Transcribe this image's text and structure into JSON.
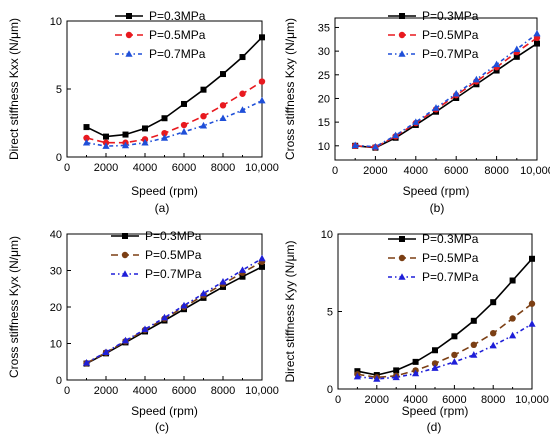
{
  "chart_data": [
    {
      "type": "line",
      "panel_label": "(a)",
      "ylabel": "Direct stiffness Kxx  (N/μm)",
      "xlabel": "Speed (rpm)",
      "xlim": [
        0,
        10000
      ],
      "ylim": [
        0,
        10
      ],
      "xticks": [
        0,
        2000,
        4000,
        6000,
        8000,
        10000
      ],
      "xtick_labels": [
        "0",
        "2000",
        "4000",
        "6000",
        "8000",
        "10,000"
      ],
      "yticks": [
        0,
        5,
        10
      ],
      "ytick_labels": [
        "0",
        "5",
        "10"
      ],
      "x": [
        1000,
        2000,
        3000,
        4000,
        5000,
        6000,
        7000,
        8000,
        9000,
        10000
      ],
      "legend_placement": "top-right",
      "series": [
        {
          "name": "P=0.3MPa",
          "color": "#000000",
          "marker": "square",
          "dash": "solid",
          "values": [
            2.2,
            1.5,
            1.65,
            2.1,
            2.85,
            3.9,
            4.95,
            6.1,
            7.35,
            8.8
          ]
        },
        {
          "name": "P=0.5MPa",
          "color": "#e8191f",
          "marker": "circle",
          "dash": "long-dash",
          "values": [
            1.4,
            1.05,
            1.05,
            1.3,
            1.75,
            2.35,
            3.0,
            3.8,
            4.65,
            5.55
          ]
        },
        {
          "name": "P=0.7MPa",
          "color": "#1f4fd8",
          "marker": "triangle",
          "dash": "dash-dot",
          "values": [
            1.05,
            0.8,
            0.85,
            1.05,
            1.4,
            1.85,
            2.3,
            2.85,
            3.45,
            4.15
          ]
        }
      ]
    },
    {
      "type": "line",
      "panel_label": "(b)",
      "ylabel": "Cross stiffness Kxy  (N/μm)",
      "xlabel": "Speed (rpm)",
      "xlim": [
        0,
        10000
      ],
      "ylim": [
        7,
        37
      ],
      "xticks": [
        0,
        2000,
        4000,
        6000,
        8000,
        10000
      ],
      "xtick_labels": [
        "0",
        "2000",
        "4000",
        "6000",
        "8000",
        "10,000"
      ],
      "yticks": [
        10,
        15,
        20,
        25,
        30,
        35
      ],
      "ytick_labels": [
        "10",
        "15",
        "20",
        "25",
        "30",
        "35"
      ],
      "x": [
        1000,
        2000,
        3000,
        4000,
        5000,
        6000,
        7000,
        8000,
        9000,
        10000
      ],
      "legend_placement": "top-right",
      "series": [
        {
          "name": "P=0.3MPa",
          "color": "#000000",
          "marker": "square",
          "dash": "solid",
          "values": [
            10.0,
            9.6,
            11.7,
            14.4,
            17.2,
            20.1,
            23.0,
            25.9,
            28.8,
            31.6
          ]
        },
        {
          "name": "P=0.5MPa",
          "color": "#e8191f",
          "marker": "circle",
          "dash": "long-dash",
          "values": [
            10.0,
            9.7,
            12.0,
            14.8,
            17.7,
            20.7,
            23.6,
            26.6,
            29.8,
            32.8
          ]
        },
        {
          "name": "P=0.7MPa",
          "color": "#1f4fd8",
          "marker": "triangle",
          "dash": "dash-dot",
          "values": [
            10.1,
            9.8,
            12.2,
            15.0,
            18.0,
            21.0,
            24.0,
            27.2,
            30.4,
            33.7
          ]
        }
      ]
    },
    {
      "type": "line",
      "panel_label": "(c)",
      "ylabel": "Cross stiffness Kyx  (N/μm)",
      "xlabel": "Speed (rpm)",
      "xlim": [
        0,
        10000
      ],
      "ylim": [
        0,
        40
      ],
      "xticks": [
        0,
        2000,
        4000,
        6000,
        8000,
        10000
      ],
      "xtick_labels": [
        "0",
        "2000",
        "4000",
        "6000",
        "8000",
        "10,000"
      ],
      "yticks": [
        0,
        10,
        20,
        30,
        40
      ],
      "ytick_labels": [
        "0",
        "10",
        "20",
        "30",
        "40"
      ],
      "x": [
        1000,
        2000,
        3000,
        4000,
        5000,
        6000,
        7000,
        8000,
        9000,
        10000
      ],
      "legend_placement": "top-left",
      "series": [
        {
          "name": "P=0.3MPa",
          "color": "#000000",
          "marker": "square",
          "dash": "solid",
          "values": [
            4.5,
            7.3,
            10.3,
            13.3,
            16.3,
            19.4,
            22.5,
            25.5,
            28.3,
            31.0
          ]
        },
        {
          "name": "P=0.5MPa",
          "color": "#7b3f14",
          "marker": "circle",
          "dash": "long-dash",
          "values": [
            4.6,
            7.5,
            10.6,
            13.7,
            16.8,
            20.0,
            23.2,
            26.3,
            29.4,
            32.4
          ]
        },
        {
          "name": "P=0.7MPa",
          "color": "#1f1fd8",
          "marker": "triangle",
          "dash": "dash-dot",
          "values": [
            4.7,
            7.6,
            10.8,
            13.9,
            17.1,
            20.4,
            23.7,
            26.9,
            30.1,
            33.3
          ]
        }
      ]
    },
    {
      "type": "line",
      "panel_label": "(d)",
      "ylabel": "Direct stiffness Kyy  (N/μm)",
      "xlabel": "Speed (rpm)",
      "xlim": [
        0,
        10000
      ],
      "ylim": [
        0,
        10
      ],
      "xticks": [
        0,
        2000,
        4000,
        6000,
        8000,
        10000
      ],
      "xtick_labels": [
        "0",
        "2000",
        "4000",
        "6000",
        "8000",
        "10,000"
      ],
      "yticks": [
        0,
        5,
        10
      ],
      "ytick_labels": [
        "0",
        "5",
        "10"
      ],
      "x": [
        1000,
        2000,
        3000,
        4000,
        5000,
        6000,
        7000,
        8000,
        9000,
        10000
      ],
      "legend_placement": "top-left",
      "series": [
        {
          "name": "P=0.3MPa",
          "color": "#000000",
          "marker": "square",
          "dash": "solid",
          "values": [
            1.15,
            0.9,
            1.2,
            1.75,
            2.5,
            3.4,
            4.4,
            5.6,
            7.0,
            8.4
          ]
        },
        {
          "name": "P=0.5MPa",
          "color": "#7b3f14",
          "marker": "circle",
          "dash": "long-dash",
          "values": [
            0.95,
            0.75,
            0.85,
            1.2,
            1.65,
            2.2,
            2.85,
            3.6,
            4.55,
            5.5
          ]
        },
        {
          "name": "P=0.7MPa",
          "color": "#1f1fd8",
          "marker": "triangle",
          "dash": "dash-dot",
          "values": [
            0.8,
            0.65,
            0.75,
            1.0,
            1.35,
            1.75,
            2.2,
            2.8,
            3.45,
            4.2
          ]
        }
      ]
    }
  ]
}
